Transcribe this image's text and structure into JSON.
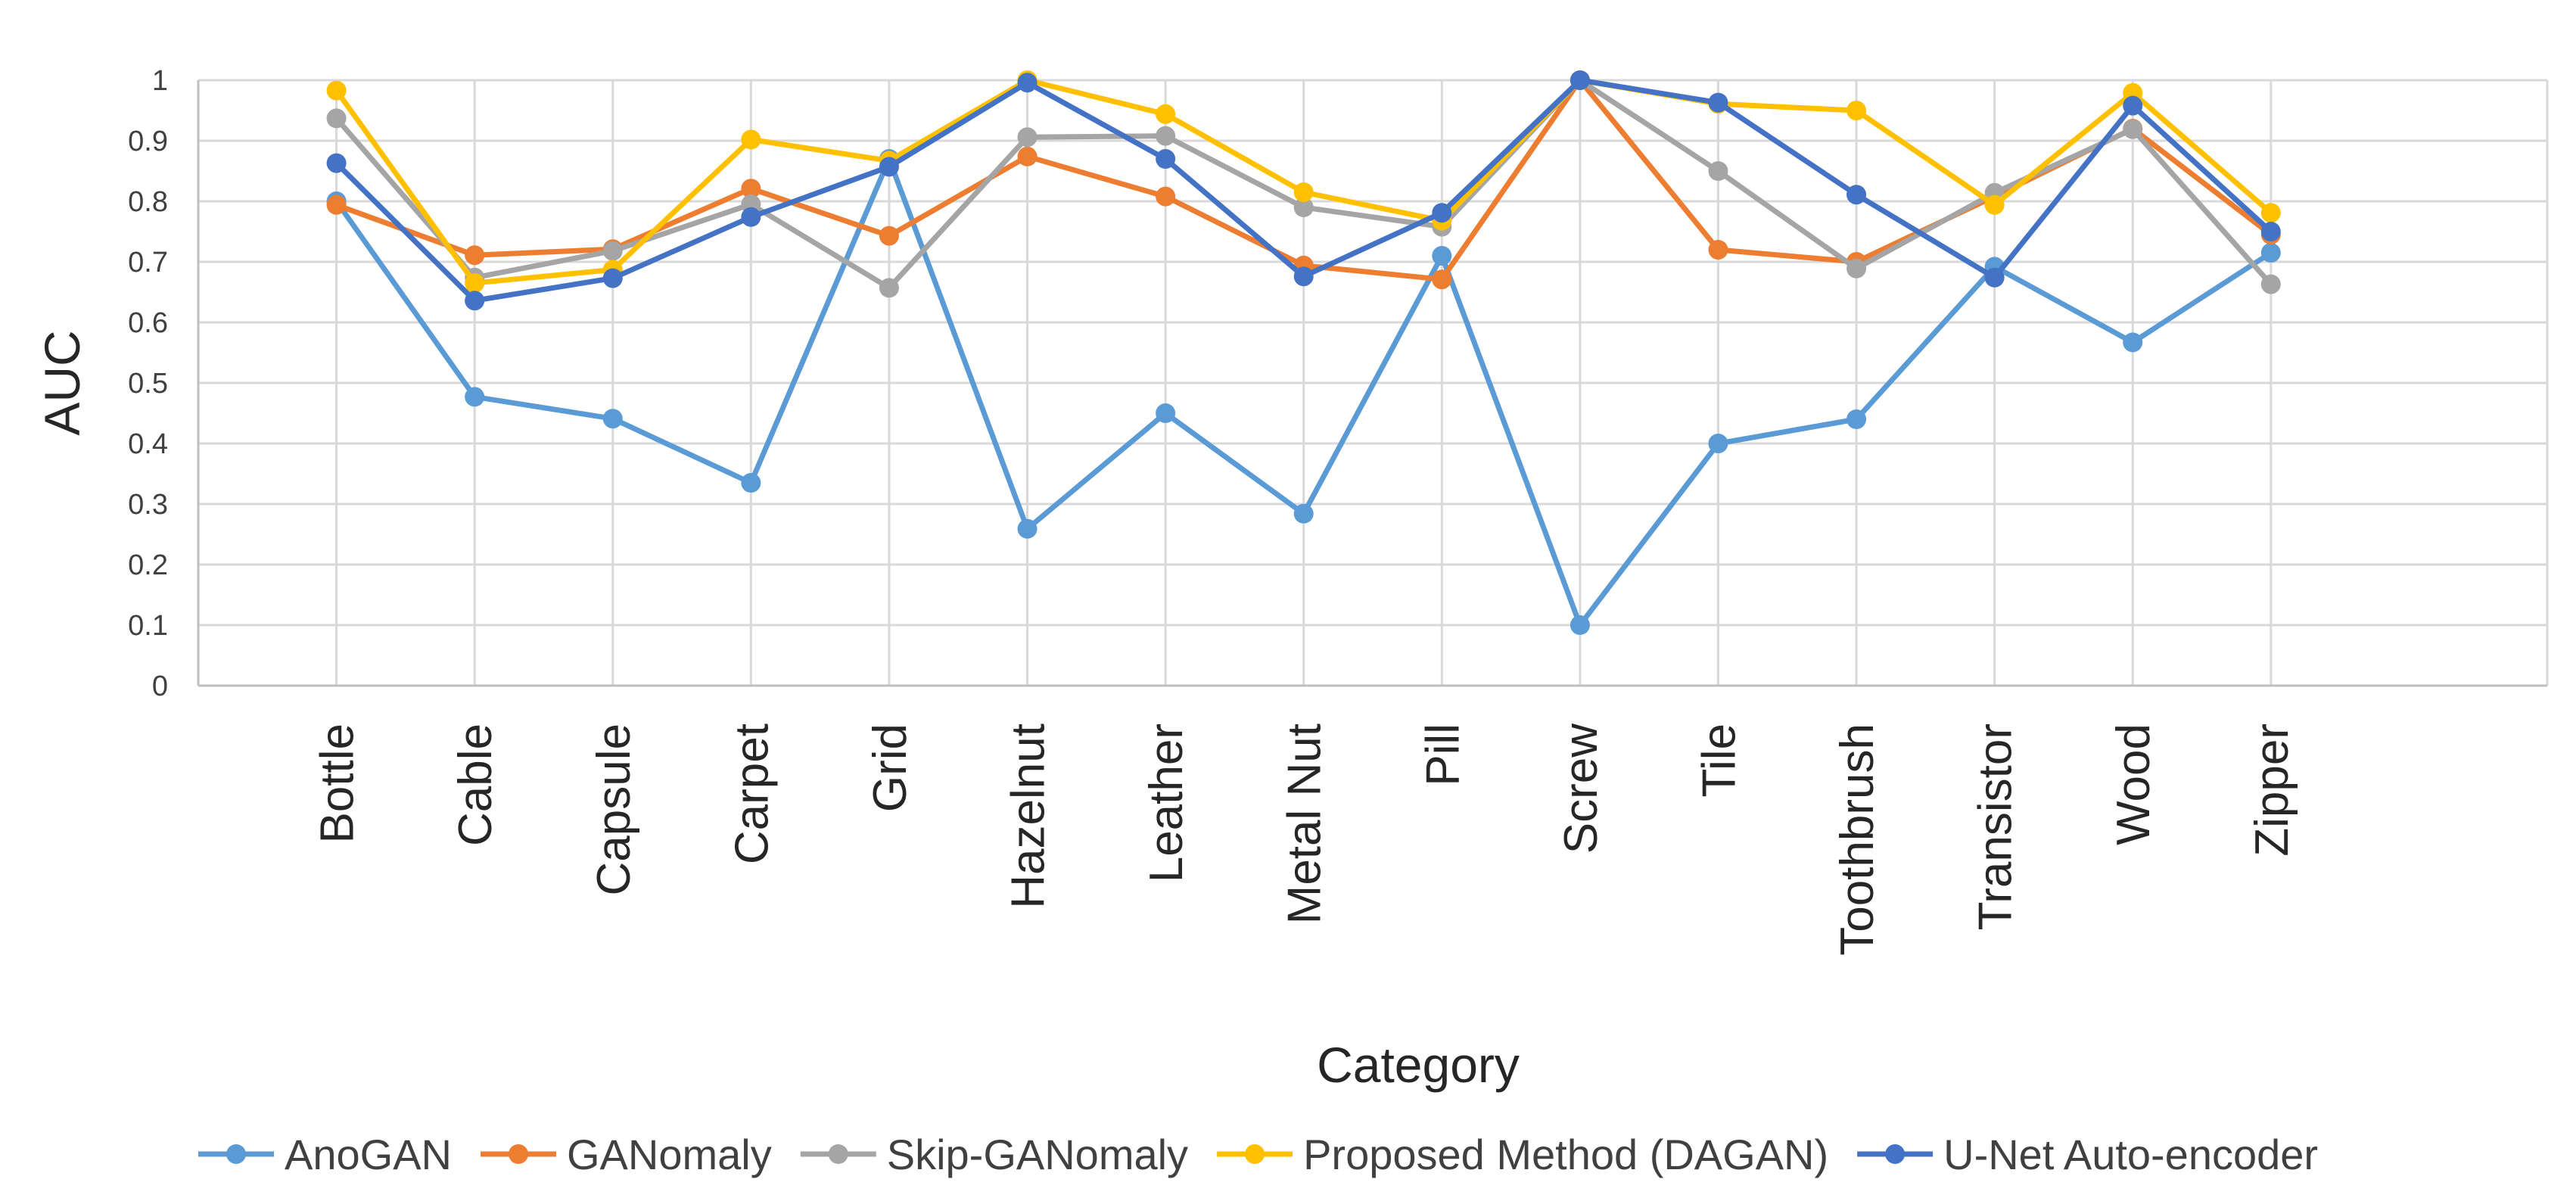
{
  "chart_data": {
    "type": "line",
    "title": "",
    "xlabel": "Category",
    "ylabel": "AUC",
    "ylim": [
      0,
      1
    ],
    "ytick_step": 0.1,
    "yticks": [
      "0",
      "0.1",
      "0.2",
      "0.3",
      "0.4",
      "0.5",
      "0.6",
      "0.7",
      "0.8",
      "0.9",
      "1"
    ],
    "grid": true,
    "legend_position": "bottom",
    "categories": [
      "Bottle",
      "Cable",
      "Capsule",
      "Carpet",
      "Grid",
      "Hazelnut",
      "Leather",
      "Metal Nut",
      "Pill",
      "Screw",
      "Tile",
      "Toothbrush",
      "Transistor",
      "Wood",
      "Zipper"
    ],
    "series": [
      {
        "name": "AnoGAN",
        "color": "#5B9BD5",
        "values": [
          0.8,
          0.477,
          0.441,
          0.335,
          0.87,
          0.259,
          0.45,
          0.284,
          0.71,
          0.1,
          0.4,
          0.44,
          0.692,
          0.567,
          0.715
        ]
      },
      {
        "name": "GANomaly",
        "color": "#ED7D31",
        "values": [
          0.794,
          0.711,
          0.721,
          0.821,
          0.743,
          0.874,
          0.808,
          0.694,
          0.671,
          1.0,
          0.72,
          0.7,
          0.808,
          0.92,
          0.745
        ]
      },
      {
        "name": "Skip-GANomaly",
        "color": "#A5A5A5",
        "values": [
          0.937,
          0.674,
          0.718,
          0.795,
          0.657,
          0.906,
          0.908,
          0.79,
          0.758,
          1.0,
          0.85,
          0.689,
          0.814,
          0.919,
          0.663
        ]
      },
      {
        "name": "Proposed Method (DAGAN)",
        "color": "#FFC000",
        "values": [
          0.983,
          0.665,
          0.687,
          0.902,
          0.867,
          1.0,
          0.944,
          0.815,
          0.768,
          1.0,
          0.961,
          0.95,
          0.794,
          0.979,
          0.781
        ]
      },
      {
        "name": "U-Net Auto-encoder",
        "color": "#4472C4",
        "values": [
          0.863,
          0.636,
          0.673,
          0.774,
          0.857,
          0.996,
          0.87,
          0.676,
          0.781,
          1.0,
          0.963,
          0.811,
          0.674,
          0.958,
          0.75
        ]
      }
    ]
  }
}
